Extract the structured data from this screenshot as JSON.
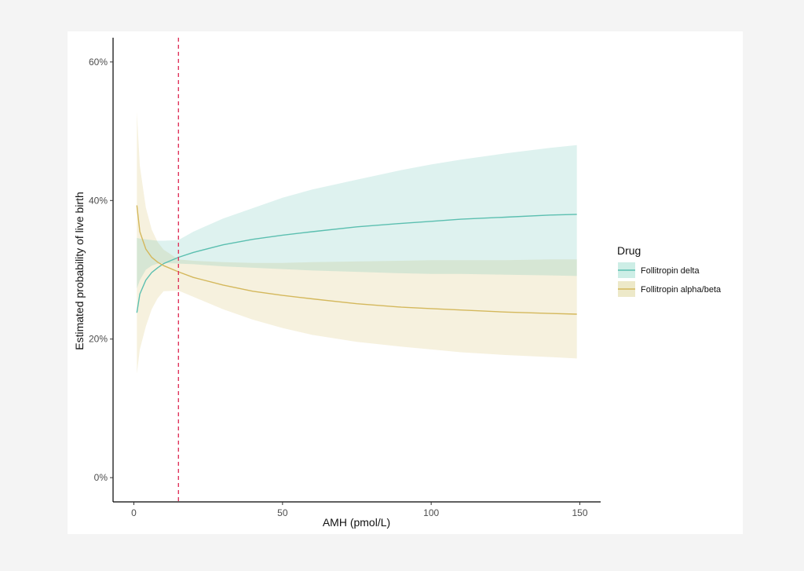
{
  "chart_data": {
    "type": "line",
    "xlabel": "AMH (pmol/L)",
    "ylabel": "Estimated probability of live birth",
    "xlim": [
      -7,
      157
    ],
    "ylim": [
      -3.5,
      63.5
    ],
    "xticks": [
      0,
      50,
      100,
      150
    ],
    "xtick_labels": [
      "0",
      "50",
      "100",
      "150"
    ],
    "yticks": [
      0,
      20,
      40,
      60
    ],
    "ytick_labels": [
      "0%",
      "20%",
      "40%",
      "60%"
    ],
    "grid": false,
    "legend": {
      "title": "Drug",
      "position": "right"
    },
    "reference_line": {
      "x": 15,
      "style": "dashed",
      "color": "#e0345c"
    },
    "x": [
      1,
      2,
      4,
      6,
      8,
      10,
      15,
      20,
      30,
      40,
      50,
      60,
      75,
      90,
      100,
      110,
      125,
      140,
      149
    ],
    "series": [
      {
        "name": "Follitropin delta",
        "color": "#5bbfb0",
        "band_color": "#cdeee6",
        "values": [
          23.8,
          26.5,
          28.5,
          29.6,
          30.3,
          30.9,
          31.8,
          32.5,
          33.6,
          34.4,
          35.0,
          35.5,
          36.2,
          36.7,
          37.0,
          37.3,
          37.6,
          37.9,
          38.0
        ],
        "lower": [
          27.3,
          28.5,
          30.0,
          30.6,
          30.9,
          31.0,
          30.9,
          30.8,
          30.5,
          30.3,
          30.1,
          29.9,
          29.7,
          29.5,
          29.4,
          29.4,
          29.3,
          29.2,
          29.1
        ],
        "upper": [
          34.6,
          34.5,
          34.4,
          34.3,
          34.2,
          34.2,
          34.3,
          35.5,
          37.4,
          38.9,
          40.4,
          41.6,
          43.0,
          44.4,
          45.2,
          45.9,
          46.8,
          47.6,
          48.0
        ]
      },
      {
        "name": "Follitropin alpha/beta",
        "color": "#d4b85c",
        "band_color": "#ede9c9",
        "values": [
          39.3,
          35.5,
          33.0,
          31.8,
          31.1,
          30.6,
          29.7,
          28.9,
          27.8,
          26.9,
          26.3,
          25.8,
          25.1,
          24.6,
          24.4,
          24.2,
          23.9,
          23.7,
          23.6
        ],
        "lower": [
          15.0,
          18.5,
          21.8,
          24.3,
          25.9,
          26.9,
          27.0,
          26.1,
          24.3,
          22.8,
          21.6,
          20.6,
          19.6,
          18.9,
          18.5,
          18.1,
          17.7,
          17.4,
          17.2
        ],
        "upper": [
          52.8,
          45.0,
          39.0,
          35.8,
          34.0,
          32.9,
          31.5,
          31.3,
          31.1,
          31.0,
          31.0,
          31.1,
          31.2,
          31.3,
          31.4,
          31.4,
          31.4,
          31.5,
          31.5
        ]
      }
    ]
  }
}
